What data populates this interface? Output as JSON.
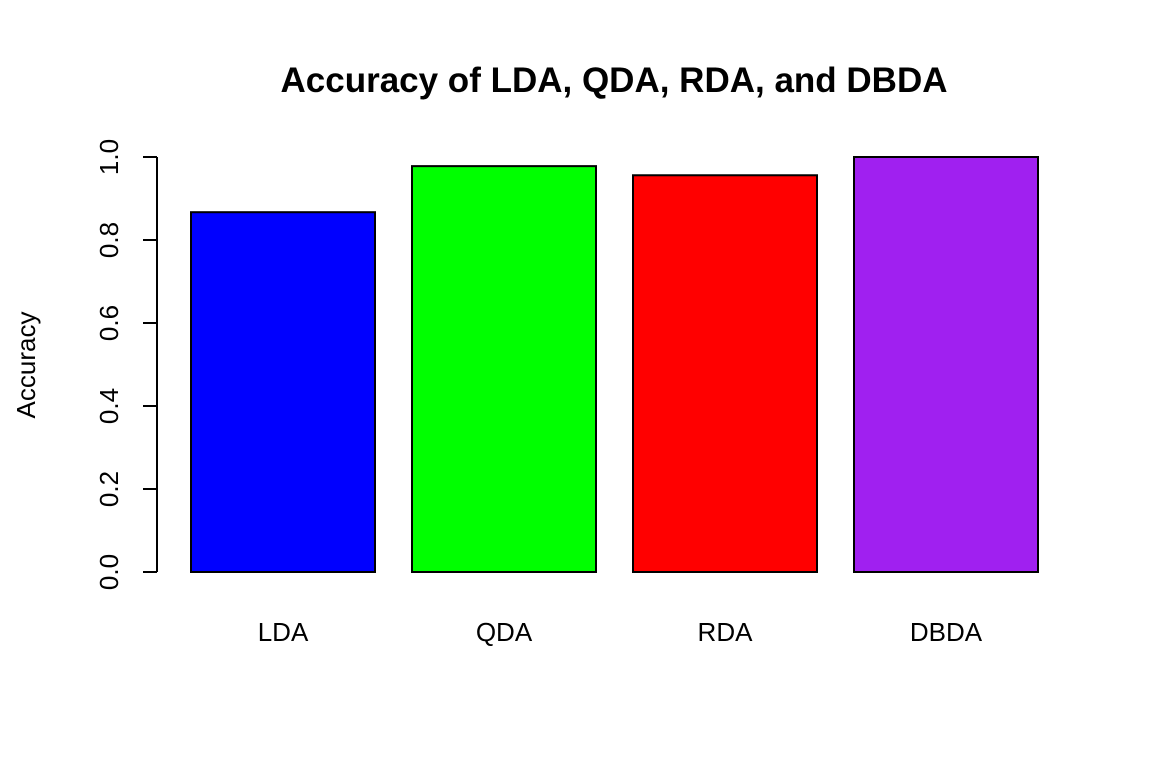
{
  "chart_data": {
    "type": "bar",
    "title": "Accuracy of LDA, QDA, RDA, and DBDA",
    "xlabel": "",
    "ylabel": "Accuracy",
    "categories": [
      "LDA",
      "QDA",
      "RDA",
      "DBDA"
    ],
    "values": [
      0.867,
      0.978,
      0.956,
      1.0
    ],
    "colors": [
      "#0000FF",
      "#00FF00",
      "#FF0000",
      "#A020F0"
    ],
    "ylim": [
      0,
      1.0
    ],
    "yticks": [
      "0.0",
      "0.2",
      "0.4",
      "0.6",
      "0.8",
      "1.0"
    ],
    "grid": false,
    "legend": "none"
  }
}
